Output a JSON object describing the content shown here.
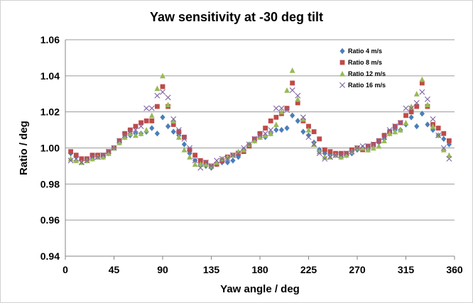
{
  "chart_data": {
    "type": "scatter",
    "title": "Yaw sensitivity at -30 deg tilt",
    "xlabel": "Yaw angle / deg",
    "ylabel": "Ratio / deg",
    "xlim": [
      0,
      360
    ],
    "ylim": [
      0.94,
      1.06
    ],
    "xticks": [
      0,
      45,
      90,
      135,
      180,
      225,
      270,
      315,
      360
    ],
    "yticks": [
      0.94,
      0.96,
      0.98,
      1.0,
      1.02,
      1.04,
      1.06
    ],
    "ytick_labels": [
      "0.94",
      "0.96",
      "0.98",
      "1.00",
      "1.02",
      "1.04",
      "1.06"
    ],
    "grid": "horizontal",
    "legend_position": "top-right",
    "series": [
      {
        "name": "Ratio 4 m/s",
        "color": "#4a7ebb",
        "marker": "diamond",
        "x": [
          5,
          10,
          15,
          20,
          25,
          30,
          35,
          40,
          45,
          50,
          55,
          60,
          65,
          70,
          75,
          80,
          85,
          90,
          95,
          100,
          105,
          110,
          115,
          120,
          125,
          130,
          135,
          140,
          145,
          150,
          155,
          160,
          165,
          170,
          175,
          180,
          185,
          190,
          195,
          200,
          205,
          210,
          215,
          220,
          225,
          230,
          235,
          240,
          245,
          250,
          255,
          260,
          265,
          270,
          275,
          280,
          285,
          290,
          295,
          300,
          305,
          310,
          315,
          320,
          325,
          330,
          335,
          340,
          345,
          350,
          355
        ],
        "y": [
          0.997,
          0.995,
          0.993,
          0.993,
          0.995,
          0.995,
          0.995,
          0.997,
          1.0,
          1.003,
          1.006,
          1.007,
          1.008,
          1.008,
          1.009,
          1.011,
          1.008,
          1.017,
          1.012,
          1.009,
          1.007,
          1.002,
          0.997,
          0.993,
          0.991,
          0.99,
          0.989,
          0.991,
          0.992,
          0.992,
          0.993,
          0.995,
          0.999,
          1.002,
          1.004,
          1.006,
          1.006,
          1.008,
          1.01,
          1.01,
          1.011,
          1.018,
          1.015,
          1.009,
          1.007,
          1.003,
          0.999,
          0.997,
          0.996,
          0.996,
          0.995,
          0.996,
          0.997,
          0.999,
          1.0,
          0.999,
          1.001,
          1.003,
          1.005,
          1.008,
          1.01,
          1.01,
          1.013,
          1.017,
          1.012,
          1.019,
          1.013,
          1.01,
          1.007,
          1.005,
          1.002
        ]
      },
      {
        "name": "Ratio 8 m/s",
        "color": "#be4b48",
        "marker": "square",
        "x": [
          5,
          10,
          15,
          20,
          25,
          30,
          35,
          40,
          45,
          50,
          55,
          60,
          65,
          70,
          75,
          80,
          85,
          90,
          95,
          100,
          105,
          110,
          115,
          120,
          125,
          130,
          135,
          140,
          145,
          150,
          155,
          160,
          165,
          170,
          175,
          180,
          185,
          190,
          195,
          200,
          205,
          210,
          215,
          220,
          225,
          230,
          235,
          240,
          245,
          250,
          255,
          260,
          265,
          270,
          275,
          280,
          285,
          290,
          295,
          300,
          305,
          310,
          315,
          320,
          325,
          330,
          335,
          340,
          345,
          350,
          355
        ],
        "y": [
          0.998,
          0.996,
          0.994,
          0.994,
          0.996,
          0.996,
          0.996,
          0.998,
          1.0,
          1.004,
          1.008,
          1.01,
          1.012,
          1.014,
          1.015,
          1.015,
          1.023,
          1.034,
          1.023,
          1.013,
          1.009,
          1.006,
          0.999,
          0.996,
          0.993,
          0.992,
          0.99,
          0.991,
          0.993,
          0.995,
          0.996,
          0.997,
          0.998,
          1.001,
          1.005,
          1.008,
          1.011,
          1.015,
          1.017,
          1.019,
          1.022,
          1.036,
          1.025,
          1.015,
          1.012,
          1.009,
          1.005,
          0.999,
          0.998,
          0.997,
          0.997,
          0.997,
          0.999,
          1.0,
          0.999,
          1.001,
          1.002,
          1.004,
          1.007,
          1.009,
          1.012,
          1.014,
          1.018,
          1.02,
          1.023,
          1.036,
          1.023,
          1.013,
          1.011,
          1.008,
          1.004
        ]
      },
      {
        "name": "Ratio 12 m/s",
        "color": "#98b954",
        "marker": "triangle",
        "x": [
          5,
          10,
          15,
          20,
          25,
          30,
          35,
          40,
          45,
          50,
          55,
          60,
          65,
          70,
          75,
          80,
          85,
          90,
          95,
          100,
          105,
          110,
          115,
          120,
          125,
          130,
          135,
          140,
          145,
          150,
          155,
          160,
          165,
          170,
          175,
          180,
          185,
          190,
          195,
          200,
          205,
          210,
          215,
          220,
          225,
          230,
          235,
          240,
          245,
          250,
          255,
          260,
          265,
          270,
          275,
          280,
          285,
          290,
          295,
          300,
          305,
          310,
          315,
          320,
          325,
          330,
          335,
          340,
          345,
          350,
          355
        ],
        "y": [
          0.994,
          0.993,
          0.992,
          0.993,
          0.994,
          0.995,
          0.995,
          0.997,
          1.0,
          1.003,
          1.006,
          1.008,
          1.007,
          1.008,
          1.01,
          1.018,
          1.033,
          1.04,
          1.024,
          1.015,
          1.006,
          0.999,
          0.995,
          0.991,
          0.991,
          0.991,
          0.99,
          0.992,
          0.994,
          0.995,
          0.996,
          0.998,
          0.999,
          1.002,
          1.004,
          1.006,
          1.007,
          1.008,
          1.013,
          1.02,
          1.032,
          1.043,
          1.027,
          1.016,
          1.01,
          1.002,
          0.998,
          0.995,
          0.995,
          0.996,
          0.995,
          0.996,
          0.998,
          1.0,
          1.0,
          0.999,
          1.0,
          1.001,
          1.004,
          1.008,
          1.009,
          1.01,
          1.014,
          1.023,
          1.03,
          1.038,
          1.024,
          1.012,
          1.007,
          0.999,
          0.996
        ]
      },
      {
        "name": "Ratio 16 m/s",
        "color": "#8064a2",
        "marker": "x",
        "x": [
          5,
          10,
          15,
          20,
          25,
          30,
          35,
          40,
          45,
          50,
          55,
          60,
          65,
          70,
          75,
          80,
          85,
          90,
          95,
          100,
          105,
          110,
          115,
          120,
          125,
          130,
          135,
          140,
          145,
          150,
          155,
          160,
          165,
          170,
          175,
          180,
          185,
          190,
          195,
          200,
          205,
          210,
          215,
          220,
          225,
          230,
          235,
          240,
          245,
          250,
          255,
          260,
          265,
          270,
          275,
          280,
          285,
          290,
          295,
          300,
          305,
          310,
          315,
          320,
          325,
          330,
          335,
          340,
          345,
          350,
          355
        ],
        "y": [
          0.993,
          0.994,
          0.992,
          0.993,
          0.995,
          0.995,
          0.996,
          0.998,
          1.0,
          1.004,
          1.007,
          1.009,
          1.01,
          1.012,
          1.022,
          1.022,
          1.029,
          1.031,
          1.028,
          1.016,
          1.01,
          1.005,
          1.0,
          0.993,
          0.989,
          0.992,
          0.99,
          0.993,
          0.994,
          0.994,
          0.996,
          0.997,
          1.0,
          1.002,
          1.005,
          1.007,
          1.008,
          1.01,
          1.022,
          1.022,
          1.021,
          1.032,
          1.029,
          1.017,
          1.006,
          1.002,
          0.997,
          0.994,
          0.995,
          0.996,
          0.996,
          0.997,
          0.998,
          1.0,
          1.001,
          1.001,
          1.002,
          1.004,
          1.006,
          1.01,
          1.012,
          1.014,
          1.022,
          1.022,
          1.025,
          1.031,
          1.027,
          1.016,
          1.007,
          1.0,
          0.994
        ]
      }
    ]
  }
}
